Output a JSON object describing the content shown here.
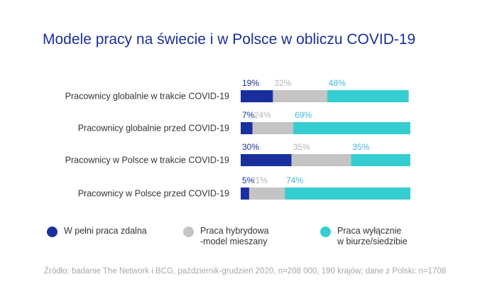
{
  "chart_data": {
    "type": "bar",
    "orientation": "horizontal",
    "stacked": true,
    "title": "Modele pracy na świecie i w Polsce w obliczu COVID-19",
    "categories": [
      "Pracownicy globalnie w trakcie COVID-19",
      "Pracownicy globalnie przed COVID-19",
      "Pracownicy w Polsce w trakcie COVID-19",
      "Pracownicy w Polsce przed COVID-19"
    ],
    "series": [
      {
        "name": "W pełni praca zdalna",
        "color": "#1a2f9e",
        "label_color": "#1a2f9e",
        "values": [
          19,
          7,
          30,
          5
        ]
      },
      {
        "name": "Praca hybrydowa\n-model mieszany",
        "color": "#c4c4c4",
        "label_color": "#b4b4b4",
        "values": [
          32,
          24,
          35,
          21
        ]
      },
      {
        "name": "Praca wyłącznie\nw biurze/siedzibie",
        "color": "#36cdd0",
        "label_color": "#3fb8da",
        "values": [
          48,
          69,
          35,
          74
        ]
      }
    ],
    "xlim": [
      0,
      100
    ],
    "value_suffix": "%",
    "grid": false,
    "legend_position": "bottom"
  },
  "source": "Źródło: badanie The Network i BCG, październik-grudzień 2020, n=208 000, 190 krajów; dane z Polski: n=1708"
}
